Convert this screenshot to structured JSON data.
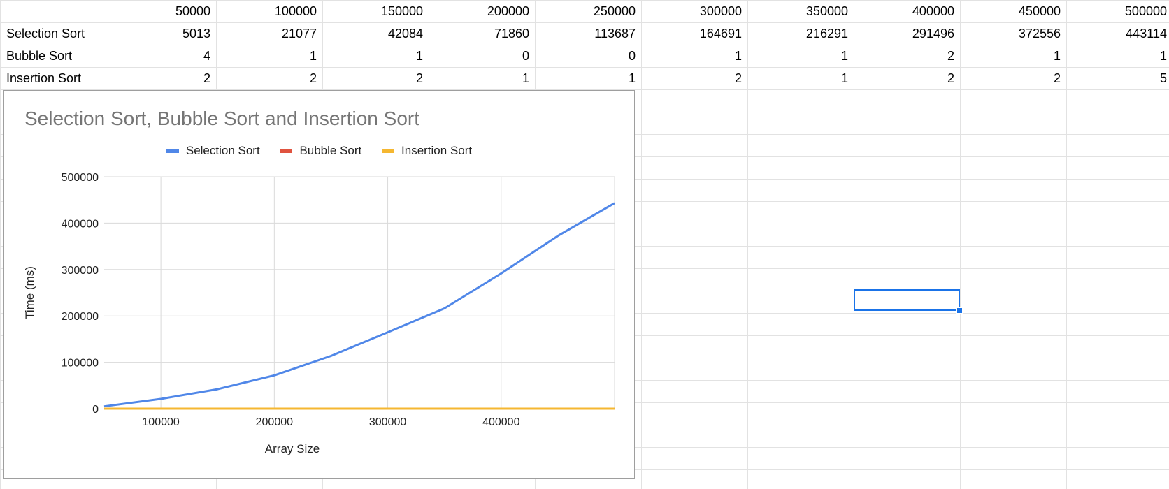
{
  "sheet": {
    "header_row": [
      "50000",
      "100000",
      "150000",
      "200000",
      "250000",
      "300000",
      "350000",
      "400000",
      "450000",
      "500000"
    ],
    "rows": [
      {
        "label": "Selection Sort",
        "values": [
          "5013",
          "21077",
          "42084",
          "71860",
          "113687",
          "164691",
          "216291",
          "291496",
          "372556",
          "443114"
        ]
      },
      {
        "label": "Bubble Sort",
        "values": [
          "4",
          "1",
          "1",
          "0",
          "0",
          "1",
          "1",
          "2",
          "1",
          "1"
        ]
      },
      {
        "label": "Insertion Sort",
        "values": [
          "2",
          "2",
          "2",
          "1",
          "1",
          "2",
          "1",
          "2",
          "2",
          "5"
        ]
      }
    ]
  },
  "colors": {
    "selection": "#5087e8",
    "bubble": "#e0533f",
    "insertion": "#f5b731",
    "gridline": "#dadada",
    "selection_border": "#1a73e8"
  },
  "chart_data": {
    "type": "line",
    "title": "Selection Sort, Bubble Sort and Insertion Sort",
    "xlabel": "Array Size",
    "ylabel": "Time (ms)",
    "x": [
      50000,
      100000,
      150000,
      200000,
      250000,
      300000,
      350000,
      400000,
      450000,
      500000
    ],
    "xlim": [
      50000,
      500000
    ],
    "ylim": [
      0,
      500000
    ],
    "x_ticks": [
      "100000",
      "200000",
      "300000",
      "400000"
    ],
    "y_ticks": [
      "0",
      "100000",
      "200000",
      "300000",
      "400000",
      "500000"
    ],
    "grid": true,
    "legend_position": "top",
    "series": [
      {
        "name": "Selection Sort",
        "values": [
          5013,
          21077,
          42084,
          71860,
          113687,
          164691,
          216291,
          291496,
          372556,
          443114
        ]
      },
      {
        "name": "Bubble Sort",
        "values": [
          4,
          1,
          1,
          0,
          0,
          1,
          1,
          2,
          1,
          1
        ]
      },
      {
        "name": "Insertion Sort",
        "values": [
          2,
          2,
          2,
          1,
          1,
          2,
          1,
          2,
          2,
          5
        ]
      }
    ]
  }
}
